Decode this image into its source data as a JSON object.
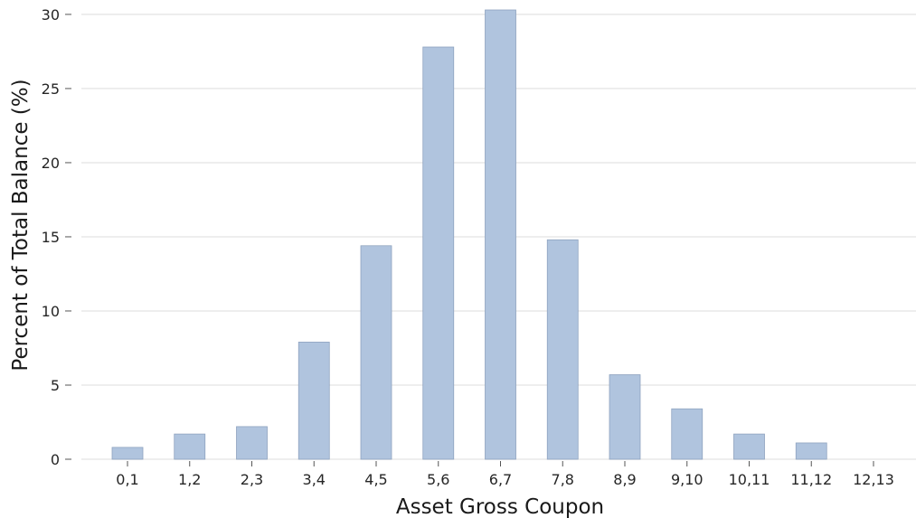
{
  "chart_data": {
    "type": "bar",
    "xlabel": "Asset Gross Coupon",
    "ylabel": "Percent of Total Balance (%)",
    "categories": [
      "0,1",
      "1,2",
      "2,3",
      "3,4",
      "4,5",
      "5,6",
      "6,7",
      "7,8",
      "8,9",
      "9,10",
      "10,11",
      "11,12",
      "12,13"
    ],
    "values": [
      0.8,
      1.7,
      2.2,
      7.9,
      14.4,
      27.8,
      30.3,
      14.8,
      5.7,
      3.4,
      1.7,
      1.1,
      0.0
    ],
    "yticks": [
      0,
      5,
      10,
      15,
      20,
      25,
      30
    ],
    "ylim": [
      0,
      30.3
    ],
    "grid": "horizontal",
    "bar_color": "#b0c4de",
    "bar_edge_color": "#8fa3bf"
  }
}
